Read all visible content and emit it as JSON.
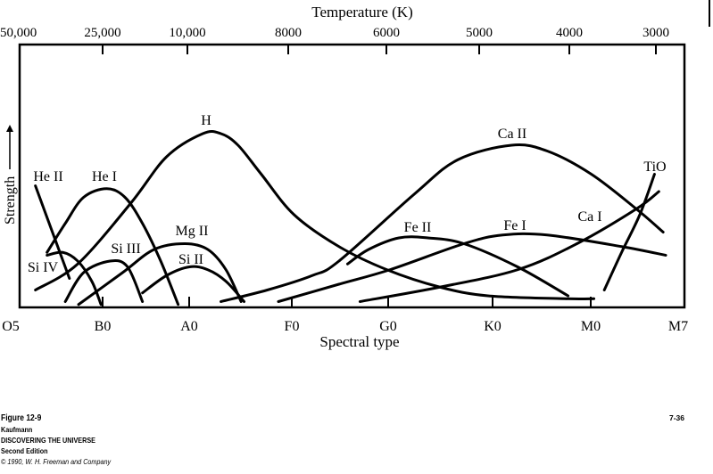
{
  "chart_data": {
    "type": "line",
    "title": "",
    "top_axis": {
      "label": "Temperature (K)",
      "ticks": [
        "50,000",
        "25,000",
        "10,000",
        "8000",
        "6000",
        "5000",
        "4000",
        "3000"
      ]
    },
    "xlabel": "Spectral type",
    "ylabel": "Strength",
    "categories": [
      "O5",
      "B0",
      "A0",
      "F0",
      "G0",
      "K0",
      "M0",
      "M7"
    ],
    "x_units": "spectral type index (O5=0, B0=1, A0=2, F0=3, G0=4, K0=5, M0=6, M7=7)",
    "ylim": [
      0,
      1
    ],
    "grid": false,
    "series": [
      {
        "name": "He II",
        "points": [
          [
            0.19,
            0.42
          ],
          [
            0.6,
            0.1
          ]
        ]
      },
      {
        "name": "He I",
        "points": [
          [
            0.33,
            0.19
          ],
          [
            0.55,
            0.29
          ],
          [
            0.77,
            0.38
          ],
          [
            1.05,
            0.41
          ],
          [
            1.27,
            0.38
          ],
          [
            1.48,
            0.29
          ],
          [
            1.7,
            0.16
          ],
          [
            1.91,
            0.01
          ]
        ]
      },
      {
        "name": "Si IV",
        "points": [
          [
            0.33,
            0.18
          ],
          [
            0.52,
            0.19
          ],
          [
            0.7,
            0.16
          ],
          [
            0.87,
            0.09
          ],
          [
            0.98,
            0.01
          ]
        ]
      },
      {
        "name": "Si III",
        "points": [
          [
            0.55,
            0.02
          ],
          [
            0.77,
            0.12
          ],
          [
            1.09,
            0.16
          ],
          [
            1.3,
            0.14
          ],
          [
            1.48,
            0.02
          ]
        ]
      },
      {
        "name": "H",
        "points": [
          [
            0.19,
            0.06
          ],
          [
            0.7,
            0.15
          ],
          [
            1.34,
            0.36
          ],
          [
            1.77,
            0.52
          ],
          [
            2.17,
            0.6
          ],
          [
            2.35,
            0.6
          ],
          [
            2.52,
            0.56
          ],
          [
            2.75,
            0.46
          ],
          [
            3.08,
            0.32
          ],
          [
            3.55,
            0.21
          ],
          [
            4.05,
            0.13
          ],
          [
            4.58,
            0.07
          ],
          [
            5.06,
            0.04
          ],
          [
            5.84,
            0.03
          ],
          [
            6.15,
            0.03
          ]
        ]
      },
      {
        "name": "Mg II",
        "points": [
          [
            0.71,
            0.01
          ],
          [
            1.24,
            0.12
          ],
          [
            1.62,
            0.2
          ],
          [
            1.99,
            0.22
          ],
          [
            2.22,
            0.2
          ],
          [
            2.4,
            0.13
          ],
          [
            2.55,
            0.02
          ]
        ]
      },
      {
        "name": "Si II",
        "points": [
          [
            1.48,
            0.05
          ],
          [
            1.77,
            0.11
          ],
          [
            2.04,
            0.14
          ],
          [
            2.22,
            0.13
          ],
          [
            2.4,
            0.09
          ],
          [
            2.58,
            0.02
          ]
        ]
      },
      {
        "name": "Ca II",
        "points": [
          [
            2.35,
            0.02
          ],
          [
            2.81,
            0.06
          ],
          [
            3.27,
            0.11
          ],
          [
            3.55,
            0.16
          ],
          [
            4.32,
            0.39
          ],
          [
            4.76,
            0.51
          ],
          [
            5.3,
            0.56
          ],
          [
            5.66,
            0.54
          ],
          [
            6.12,
            0.46
          ],
          [
            6.64,
            0.34
          ],
          [
            6.95,
            0.26
          ]
        ]
      },
      {
        "name": "Fe II",
        "points": [
          [
            3.64,
            0.15
          ],
          [
            3.86,
            0.2
          ],
          [
            4.17,
            0.24
          ],
          [
            4.46,
            0.24
          ],
          [
            4.82,
            0.22
          ],
          [
            5.36,
            0.14
          ],
          [
            5.87,
            0.04
          ]
        ]
      },
      {
        "name": "Fe I",
        "points": [
          [
            2.92,
            0.02
          ],
          [
            3.55,
            0.08
          ],
          [
            4.08,
            0.13
          ],
          [
            4.82,
            0.22
          ],
          [
            5.21,
            0.25
          ],
          [
            5.66,
            0.25
          ],
          [
            6.47,
            0.21
          ],
          [
            6.98,
            0.18
          ]
        ]
      },
      {
        "name": "Ca I",
        "points": [
          [
            3.77,
            0.02
          ],
          [
            4.58,
            0.07
          ],
          [
            5.36,
            0.13
          ],
          [
            5.96,
            0.22
          ],
          [
            6.64,
            0.34
          ],
          [
            6.9,
            0.4
          ]
        ]
      },
      {
        "name": "TiO",
        "points": [
          [
            6.27,
            0.06
          ],
          [
            6.47,
            0.19
          ],
          [
            6.68,
            0.32
          ],
          [
            6.85,
            0.46
          ]
        ]
      }
    ]
  },
  "caption": {
    "figure": "Figure 12-9",
    "author": "Kaufmann",
    "book": "DISCOVERING THE UNIVERSE",
    "edition": "Second Edition",
    "credit": "© 1990, W. H. Freeman and Company",
    "page_code": "7-36"
  }
}
